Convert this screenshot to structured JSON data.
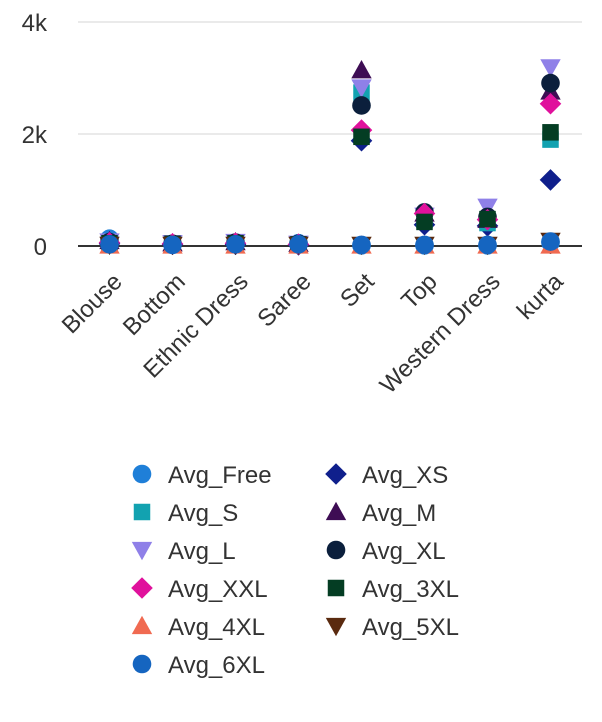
{
  "chart_data": {
    "type": "scatter",
    "categories": [
      "Blouse",
      "Bottom",
      "Ethnic Dress",
      "Saree",
      "Set",
      "Top",
      "Western Dress",
      "kurta"
    ],
    "y_ticks": [
      {
        "value": 0,
        "label": "0"
      },
      {
        "value": 2000,
        "label": "2k"
      },
      {
        "value": 4000,
        "label": "4k"
      }
    ],
    "ylim": [
      -200,
      4100
    ],
    "grid": true,
    "legend_position": "bottom",
    "series": [
      {
        "name": "Avg_Free",
        "marker": "circle",
        "color": "#1f7fd8",
        "values": [
          130,
          40,
          60,
          50,
          10,
          10,
          10,
          60
        ]
      },
      {
        "name": "Avg_XS",
        "marker": "diamond",
        "color": "#0f1f8c",
        "values": [
          40,
          30,
          30,
          20,
          1880,
          380,
          360,
          1180
        ]
      },
      {
        "name": "Avg_S",
        "marker": "square",
        "color": "#12a2b0",
        "values": [
          60,
          40,
          50,
          30,
          2740,
          470,
          410,
          1900
        ]
      },
      {
        "name": "Avg_M",
        "marker": "triangle-up",
        "color": "#3e0d54",
        "values": [
          90,
          50,
          70,
          40,
          3140,
          580,
          470,
          2760
        ]
      },
      {
        "name": "Avg_L",
        "marker": "triangle-down",
        "color": "#8f80e8",
        "values": [
          80,
          50,
          70,
          40,
          2830,
          540,
          700,
          3190
        ]
      },
      {
        "name": "Avg_XL",
        "marker": "circle",
        "color": "#0b1f3c",
        "values": [
          70,
          40,
          60,
          40,
          2510,
          600,
          520,
          2910
        ]
      },
      {
        "name": "Avg_XXL",
        "marker": "diamond",
        "color": "#e0119c",
        "values": [
          60,
          40,
          50,
          30,
          2070,
          580,
          470,
          2540
        ]
      },
      {
        "name": "Avg_3XL",
        "marker": "square",
        "color": "#043d23",
        "values": [
          50,
          40,
          50,
          30,
          1950,
          430,
          480,
          2030
        ]
      },
      {
        "name": "Avg_4XL",
        "marker": "triangle-up",
        "color": "#f06a51",
        "values": [
          10,
          10,
          10,
          10,
          10,
          10,
          10,
          10
        ]
      },
      {
        "name": "Avg_5XL",
        "marker": "triangle-down",
        "color": "#5a2a0f",
        "values": [
          20,
          20,
          20,
          20,
          20,
          20,
          20,
          90
        ]
      },
      {
        "name": "Avg_6XL",
        "marker": "circle",
        "color": "#1565c0",
        "values": [
          30,
          20,
          30,
          30,
          20,
          20,
          20,
          80
        ]
      }
    ]
  }
}
